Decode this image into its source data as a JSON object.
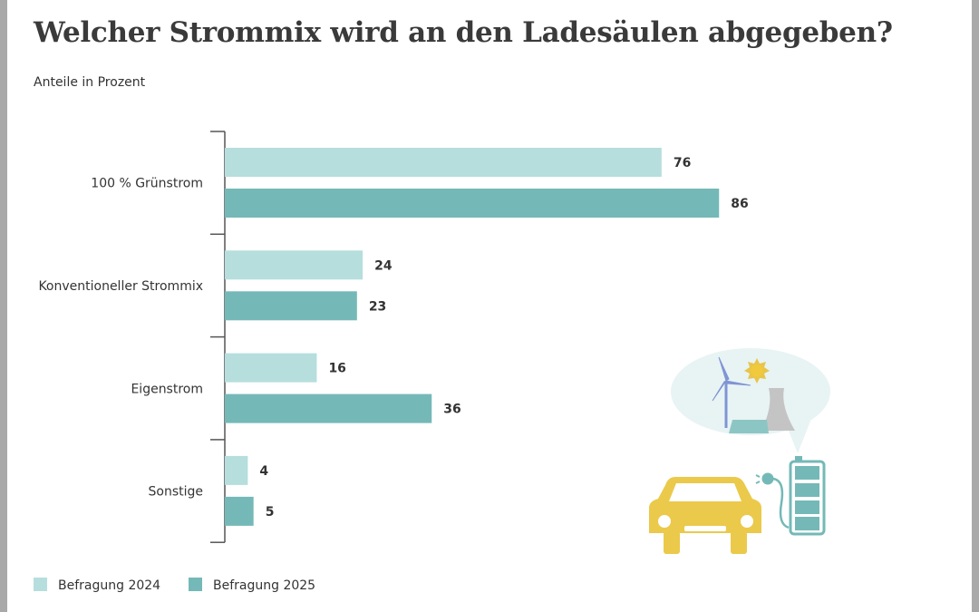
{
  "chart_data": {
    "type": "bar",
    "orientation": "horizontal",
    "title": "Welcher Strommix wird an den Ladesäulen abgegeben?",
    "subtitle": "Anteile in Prozent",
    "categories": [
      "100 % Grünstrom",
      "Konventioneller Strommix",
      "Eigenstrom",
      "Sonstige"
    ],
    "series": [
      {
        "name": "Befragung 2024",
        "values": [
          76,
          24,
          16,
          4
        ],
        "color": "#b6dedd"
      },
      {
        "name": "Befragung 2025",
        "values": [
          86,
          23,
          36,
          5
        ],
        "color": "#74b9b7"
      }
    ],
    "xlim": [
      0,
      100
    ],
    "grid": false,
    "legend": "bottom-left",
    "data_labels": true
  },
  "illustration": {
    "icons": [
      "wind-turbine-icon",
      "sun-icon",
      "cooling-tower-icon",
      "solar-panel-icon",
      "car-icon",
      "plug-icon",
      "battery-icon"
    ]
  }
}
